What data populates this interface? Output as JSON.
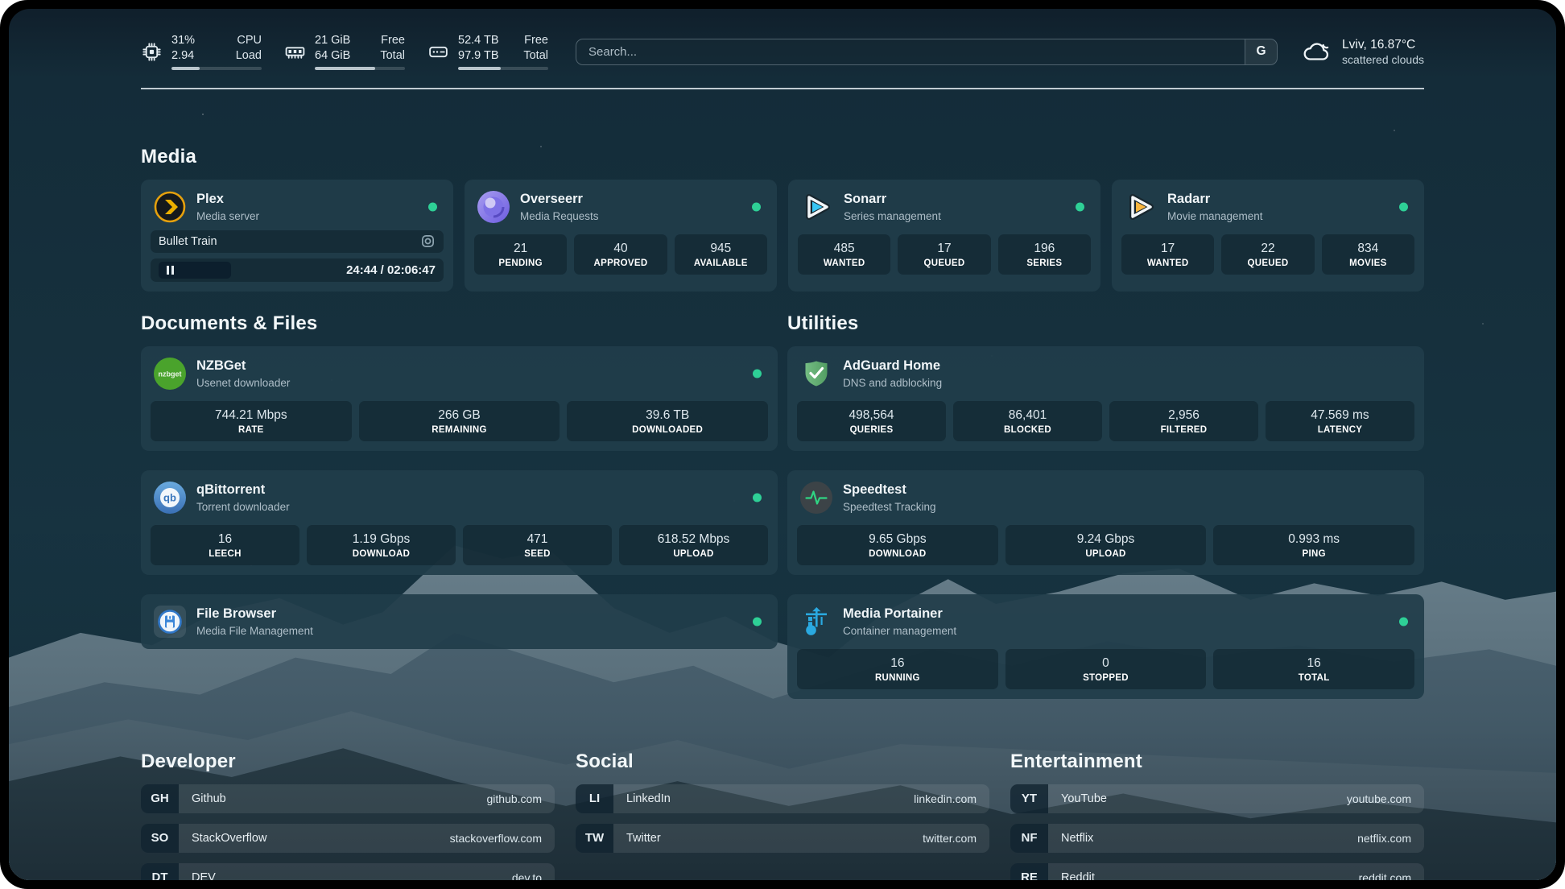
{
  "topbar": {
    "resources": [
      {
        "name": "cpu",
        "value_top": "31%",
        "value_bottom": "2.94",
        "label_top": "CPU",
        "label_bottom": "Load",
        "progress": 31
      },
      {
        "name": "memory",
        "value_top": "21 GiB",
        "value_bottom": "64 GiB",
        "label_top": "Free",
        "label_bottom": "Total",
        "progress": 67
      },
      {
        "name": "disk",
        "value_top": "52.4 TB",
        "value_bottom": "97.9 TB",
        "label_top": "Free",
        "label_bottom": "Total",
        "progress": 47
      }
    ],
    "search": {
      "placeholder": "Search...",
      "engine_button": "G"
    },
    "weather": {
      "summary": "Lviv, 16.87°C",
      "condition": "scattered clouds"
    }
  },
  "media": {
    "heading": "Media",
    "plex": {
      "name": "Plex",
      "desc": "Media server",
      "now_playing": "Bullet Train",
      "time": "24:44 / 02:06:47"
    },
    "overseerr": {
      "name": "Overseerr",
      "desc": "Media Requests",
      "stats": [
        {
          "value": "21",
          "label": "PENDING"
        },
        {
          "value": "40",
          "label": "APPROVED"
        },
        {
          "value": "945",
          "label": "AVAILABLE"
        }
      ]
    },
    "sonarr": {
      "name": "Sonarr",
      "desc": "Series management",
      "stats": [
        {
          "value": "485",
          "label": "WANTED"
        },
        {
          "value": "17",
          "label": "QUEUED"
        },
        {
          "value": "196",
          "label": "SERIES"
        }
      ]
    },
    "radarr": {
      "name": "Radarr",
      "desc": "Movie management",
      "stats": [
        {
          "value": "17",
          "label": "WANTED"
        },
        {
          "value": "22",
          "label": "QUEUED"
        },
        {
          "value": "834",
          "label": "MOVIES"
        }
      ]
    }
  },
  "documents": {
    "heading": "Documents & Files",
    "nzbget": {
      "name": "NZBGet",
      "desc": "Usenet downloader",
      "stats": [
        {
          "value": "744.21 Mbps",
          "label": "RATE"
        },
        {
          "value": "266 GB",
          "label": "REMAINING"
        },
        {
          "value": "39.6 TB",
          "label": "DOWNLOADED"
        }
      ]
    },
    "qbittorrent": {
      "name": "qBittorrent",
      "desc": "Torrent downloader",
      "stats": [
        {
          "value": "16",
          "label": "LEECH"
        },
        {
          "value": "1.19 Gbps",
          "label": "DOWNLOAD"
        },
        {
          "value": "471",
          "label": "SEED"
        },
        {
          "value": "618.52 Mbps",
          "label": "UPLOAD"
        }
      ]
    },
    "filebrowser": {
      "name": "File Browser",
      "desc": "Media File Management"
    }
  },
  "utilities": {
    "heading": "Utilities",
    "adguard": {
      "name": "AdGuard Home",
      "desc": "DNS and adblocking",
      "stats": [
        {
          "value": "498,564",
          "label": "QUERIES"
        },
        {
          "value": "86,401",
          "label": "BLOCKED"
        },
        {
          "value": "2,956",
          "label": "FILTERED"
        },
        {
          "value": "47.569 ms",
          "label": "LATENCY"
        }
      ]
    },
    "speedtest": {
      "name": "Speedtest",
      "desc": "Speedtest Tracking",
      "stats": [
        {
          "value": "9.65 Gbps",
          "label": "DOWNLOAD"
        },
        {
          "value": "9.24 Gbps",
          "label": "UPLOAD"
        },
        {
          "value": "0.993 ms",
          "label": "PING"
        }
      ]
    },
    "portainer": {
      "name": "Media Portainer",
      "desc": "Container management",
      "stats": [
        {
          "value": "16",
          "label": "RUNNING"
        },
        {
          "value": "0",
          "label": "STOPPED"
        },
        {
          "value": "16",
          "label": "TOTAL"
        }
      ]
    }
  },
  "bookmarks": {
    "developer": {
      "heading": "Developer",
      "items": [
        {
          "abbr": "GH",
          "name": "Github",
          "url": "github.com"
        },
        {
          "abbr": "SO",
          "name": "StackOverflow",
          "url": "stackoverflow.com"
        },
        {
          "abbr": "DT",
          "name": "DEV",
          "url": "dev.to"
        }
      ]
    },
    "social": {
      "heading": "Social",
      "items": [
        {
          "abbr": "LI",
          "name": "LinkedIn",
          "url": "linkedin.com"
        },
        {
          "abbr": "TW",
          "name": "Twitter",
          "url": "twitter.com"
        }
      ]
    },
    "entertainment": {
      "heading": "Entertainment",
      "items": [
        {
          "abbr": "YT",
          "name": "YouTube",
          "url": "youtube.com"
        },
        {
          "abbr": "NF",
          "name": "Netflix",
          "url": "netflix.com"
        },
        {
          "abbr": "RE",
          "name": "Reddit",
          "url": "reddit.com"
        }
      ]
    }
  },
  "colors": {
    "status_green": "#2ed096",
    "plex_amber": "#e5a00d",
    "sonarr_cyan": "#38c6f4",
    "radarr_gold": "#f9b63f",
    "adguard_green": "#5fae71",
    "portainer_blue": "#2aa9e0",
    "nzbget_green": "#4aa32c",
    "qbittorrent_blue": "#4a90d0"
  }
}
